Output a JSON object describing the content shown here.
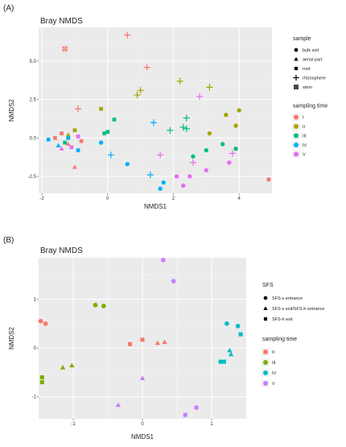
{
  "chart_data": [
    {
      "type": "scatter",
      "panel_label": "(A)",
      "title": "Bray NMDS",
      "xlabel": "NMDS1",
      "ylabel": "NMDS2",
      "xlim": [
        -2.1,
        5.0
      ],
      "ylim": [
        -3.6,
        7.2
      ],
      "xticks": [
        -2,
        0,
        2,
        4
      ],
      "yticks": [
        -2.5,
        0.0,
        2.5,
        5.0
      ],
      "ytick_labels": [
        "-2.5",
        "0.0",
        "2.5",
        "5.0"
      ],
      "grid": true,
      "legend_shape": {
        "title": "sample",
        "entries": [
          {
            "label": "bulk soil",
            "shape": "circle"
          },
          {
            "label": "aerial part",
            "shape": "triangle"
          },
          {
            "label": "root",
            "shape": "square"
          },
          {
            "label": "rhizosphere",
            "shape": "plus"
          },
          {
            "label": "stem",
            "shape": "boxedx"
          }
        ]
      },
      "legend_color": {
        "title": "sampling time",
        "entries": [
          {
            "label": "I",
            "color": "#F8766D"
          },
          {
            "label": "II",
            "color": "#A3A500"
          },
          {
            "label": "III",
            "color": "#00BF7D"
          },
          {
            "label": "IV",
            "color": "#00B0F6"
          },
          {
            "label": "V",
            "color": "#E76BF3"
          }
        ]
      },
      "points": [
        {
          "x": 0.6,
          "y": 6.7,
          "shape": "plus",
          "group": "I"
        },
        {
          "x": 1.2,
          "y": 4.6,
          "shape": "plus",
          "group": "I"
        },
        {
          "x": -1.3,
          "y": 5.8,
          "shape": "boxedx",
          "group": "I"
        },
        {
          "x": -0.9,
          "y": 1.9,
          "shape": "plus",
          "group": "I"
        },
        {
          "x": 4.9,
          "y": -2.7,
          "shape": "circle",
          "group": "I"
        },
        {
          "x": -1.0,
          "y": -1.9,
          "shape": "triangle",
          "group": "I"
        },
        {
          "x": -1.6,
          "y": 0.0,
          "shape": "square",
          "group": "I"
        },
        {
          "x": -1.4,
          "y": 0.3,
          "shape": "square",
          "group": "I"
        },
        {
          "x": -1.2,
          "y": -0.4,
          "shape": "triangle",
          "group": "I"
        },
        {
          "x": -0.8,
          "y": -0.2,
          "shape": "square",
          "group": "I"
        },
        {
          "x": 2.2,
          "y": 3.7,
          "shape": "plus",
          "group": "II"
        },
        {
          "x": 3.1,
          "y": 3.3,
          "shape": "plus",
          "group": "II"
        },
        {
          "x": 1.0,
          "y": 3.1,
          "shape": "plus",
          "group": "II"
        },
        {
          "x": 0.9,
          "y": 2.8,
          "shape": "plus",
          "group": "II"
        },
        {
          "x": -0.2,
          "y": 1.9,
          "shape": "square",
          "group": "II"
        },
        {
          "x": 4.0,
          "y": 1.8,
          "shape": "circle",
          "group": "II"
        },
        {
          "x": 3.6,
          "y": 1.5,
          "shape": "circle",
          "group": "II"
        },
        {
          "x": 3.9,
          "y": 0.8,
          "shape": "circle",
          "group": "II"
        },
        {
          "x": 3.1,
          "y": 0.3,
          "shape": "circle",
          "group": "II"
        },
        {
          "x": -1.0,
          "y": 0.5,
          "shape": "square",
          "group": "II"
        },
        {
          "x": -1.2,
          "y": 0.2,
          "shape": "triangle",
          "group": "II"
        },
        {
          "x": 2.4,
          "y": 1.3,
          "shape": "plus",
          "group": "III"
        },
        {
          "x": 2.3,
          "y": 0.7,
          "shape": "plus",
          "group": "III"
        },
        {
          "x": 2.4,
          "y": 0.6,
          "shape": "plus",
          "group": "III"
        },
        {
          "x": 1.9,
          "y": 0.5,
          "shape": "plus",
          "group": "III"
        },
        {
          "x": 0.2,
          "y": 1.2,
          "shape": "square",
          "group": "III"
        },
        {
          "x": -0.1,
          "y": 0.3,
          "shape": "square",
          "group": "III"
        },
        {
          "x": 0.0,
          "y": 0.4,
          "shape": "square",
          "group": "III"
        },
        {
          "x": 3.5,
          "y": -0.4,
          "shape": "circle",
          "group": "III"
        },
        {
          "x": 3.9,
          "y": -0.7,
          "shape": "circle",
          "group": "III"
        },
        {
          "x": 3.0,
          "y": -0.8,
          "shape": "circle",
          "group": "III"
        },
        {
          "x": 2.6,
          "y": -1.2,
          "shape": "circle",
          "group": "III"
        },
        {
          "x": -1.3,
          "y": -0.3,
          "shape": "square",
          "group": "III"
        },
        {
          "x": 1.4,
          "y": 1.0,
          "shape": "plus",
          "group": "IV"
        },
        {
          "x": 0.1,
          "y": -1.1,
          "shape": "plus",
          "group": "IV"
        },
        {
          "x": 1.3,
          "y": -2.4,
          "shape": "plus",
          "group": "IV"
        },
        {
          "x": -0.2,
          "y": -0.3,
          "shape": "circle",
          "group": "IV"
        },
        {
          "x": 0.6,
          "y": -1.7,
          "shape": "circle",
          "group": "IV"
        },
        {
          "x": 1.7,
          "y": -2.9,
          "shape": "circle",
          "group": "IV"
        },
        {
          "x": 1.6,
          "y": -3.3,
          "shape": "circle",
          "group": "IV"
        },
        {
          "x": -1.8,
          "y": -0.1,
          "shape": "square",
          "group": "IV"
        },
        {
          "x": -1.5,
          "y": -0.5,
          "shape": "triangle",
          "group": "IV"
        },
        {
          "x": -0.9,
          "y": -0.8,
          "shape": "square",
          "group": "IV"
        },
        {
          "x": -1.2,
          "y": 0.0,
          "shape": "circle",
          "group": "IV"
        },
        {
          "x": 2.8,
          "y": 2.7,
          "shape": "plus",
          "group": "V"
        },
        {
          "x": 1.6,
          "y": -1.1,
          "shape": "plus",
          "group": "V"
        },
        {
          "x": 2.6,
          "y": -1.6,
          "shape": "plus",
          "group": "V"
        },
        {
          "x": 3.8,
          "y": -1.0,
          "shape": "plus",
          "group": "V"
        },
        {
          "x": 3.7,
          "y": -1.6,
          "shape": "circle",
          "group": "V"
        },
        {
          "x": 3.0,
          "y": -2.1,
          "shape": "circle",
          "group": "V"
        },
        {
          "x": 2.5,
          "y": -2.5,
          "shape": "circle",
          "group": "V"
        },
        {
          "x": 2.1,
          "y": -2.5,
          "shape": "circle",
          "group": "V"
        },
        {
          "x": 2.3,
          "y": -3.1,
          "shape": "circle",
          "group": "V"
        },
        {
          "x": -1.1,
          "y": -0.6,
          "shape": "square",
          "group": "V"
        },
        {
          "x": -1.4,
          "y": -0.7,
          "shape": "triangle",
          "group": "V"
        },
        {
          "x": -0.9,
          "y": 0.1,
          "shape": "square",
          "group": "V"
        }
      ]
    },
    {
      "type": "scatter",
      "panel_label": "(B)",
      "title": "Bray NMDS",
      "xlabel": "NMDS1",
      "ylabel": "NMDS2",
      "xlim": [
        -1.5,
        1.5
      ],
      "ylim": [
        -1.45,
        1.85
      ],
      "xticks": [
        -1,
        0,
        1
      ],
      "yticks": [
        -1,
        0,
        1
      ],
      "grid": true,
      "legend_shape": {
        "title": "SFS",
        "entries": [
          {
            "label": "SFS-v entrance",
            "shape": "circle"
          },
          {
            "label": "SFS-v exit/SFS-h entrance",
            "shape": "triangle"
          },
          {
            "label": "SFS-h exit",
            "shape": "square"
          }
        ]
      },
      "legend_color": {
        "title": "sampling time",
        "entries": [
          {
            "label": "II",
            "color": "#F8766D"
          },
          {
            "label": "III",
            "color": "#7CAE00"
          },
          {
            "label": "IV",
            "color": "#00BFC4"
          },
          {
            "label": "V",
            "color": "#C77CFF"
          }
        ]
      },
      "points": [
        {
          "x": -1.47,
          "y": 0.55,
          "shape": "circle",
          "group": "II"
        },
        {
          "x": -1.4,
          "y": 0.5,
          "shape": "circle",
          "group": "II"
        },
        {
          "x": 0.22,
          "y": 0.1,
          "shape": "triangle",
          "group": "II"
        },
        {
          "x": 0.32,
          "y": 0.12,
          "shape": "triangle",
          "group": "II"
        },
        {
          "x": -0.18,
          "y": 0.08,
          "shape": "square",
          "group": "II"
        },
        {
          "x": 0.0,
          "y": 0.17,
          "shape": "square",
          "group": "II"
        },
        {
          "x": -0.68,
          "y": 0.88,
          "shape": "circle",
          "group": "III"
        },
        {
          "x": -0.56,
          "y": 0.86,
          "shape": "circle",
          "group": "III"
        },
        {
          "x": -1.15,
          "y": -0.4,
          "shape": "triangle",
          "group": "III"
        },
        {
          "x": -1.02,
          "y": -0.36,
          "shape": "triangle",
          "group": "III"
        },
        {
          "x": -1.45,
          "y": -0.6,
          "shape": "square",
          "group": "III"
        },
        {
          "x": -1.45,
          "y": -0.7,
          "shape": "square",
          "group": "III"
        },
        {
          "x": 1.22,
          "y": 0.5,
          "shape": "circle",
          "group": "IV"
        },
        {
          "x": 1.38,
          "y": 0.45,
          "shape": "circle",
          "group": "IV"
        },
        {
          "x": 1.42,
          "y": 0.28,
          "shape": "square",
          "group": "IV"
        },
        {
          "x": 1.26,
          "y": -0.05,
          "shape": "triangle",
          "group": "IV"
        },
        {
          "x": 1.28,
          "y": -0.13,
          "shape": "triangle",
          "group": "IV"
        },
        {
          "x": 1.13,
          "y": -0.28,
          "shape": "square",
          "group": "IV"
        },
        {
          "x": 1.18,
          "y": -0.28,
          "shape": "square",
          "group": "IV"
        },
        {
          "x": 0.3,
          "y": 1.8,
          "shape": "circle",
          "group": "V"
        },
        {
          "x": 0.45,
          "y": 1.37,
          "shape": "circle",
          "group": "V"
        },
        {
          "x": 0.0,
          "y": -0.62,
          "shape": "triangle",
          "group": "V"
        },
        {
          "x": -0.35,
          "y": -1.17,
          "shape": "triangle",
          "group": "V"
        },
        {
          "x": 0.78,
          "y": -1.22,
          "shape": "square",
          "group": "V"
        },
        {
          "x": 0.62,
          "y": -1.37,
          "shape": "square",
          "group": "V"
        }
      ]
    }
  ]
}
